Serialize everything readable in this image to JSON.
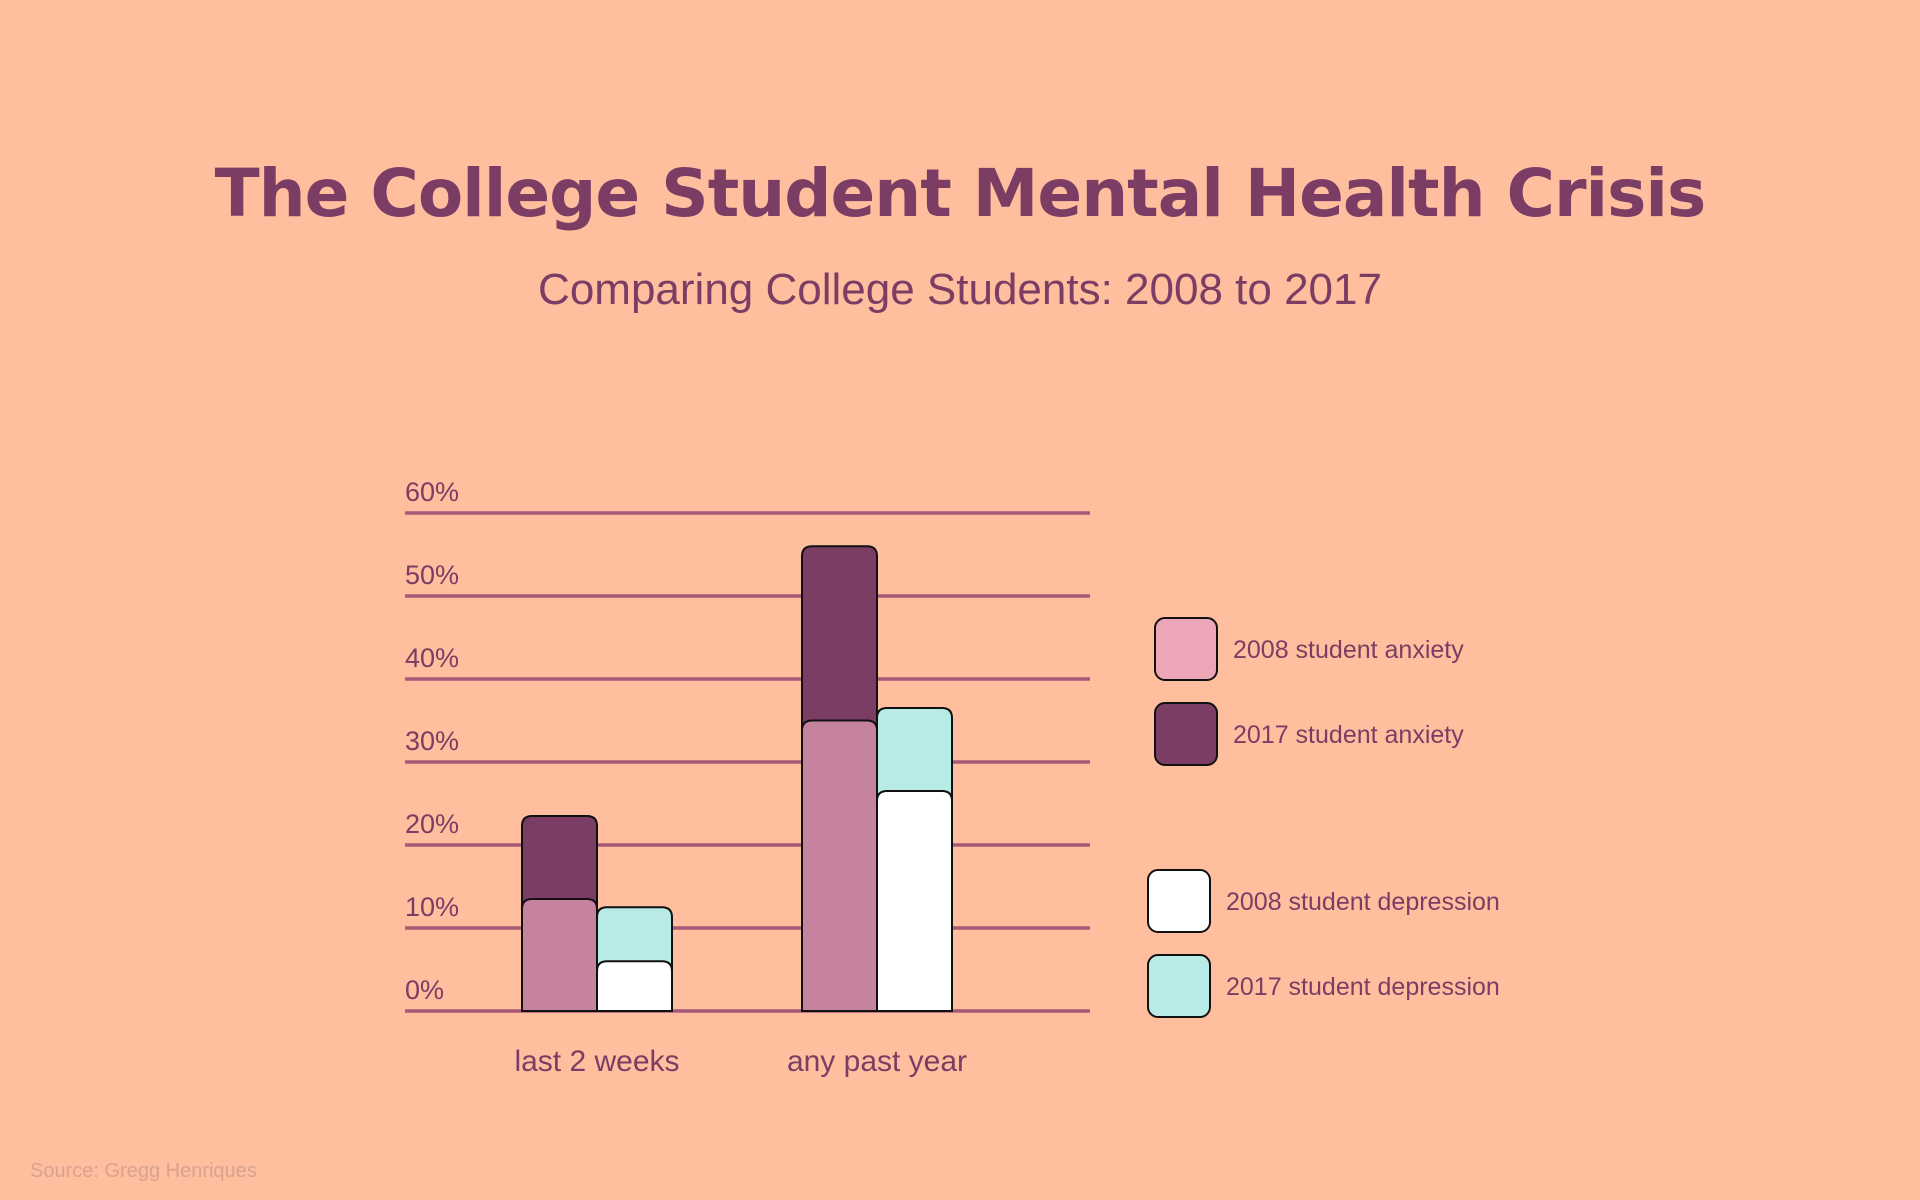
{
  "title": "The College Student Mental Health Crisis",
  "subtitle": "Comparing College Students: 2008 to 2017",
  "source": "Source: Gregg Henriques",
  "colors": {
    "background": "#FFBF9F",
    "text": "#7B3D63",
    "gridline": "#A85878",
    "source_text": "#D9A290",
    "outline": "#111111",
    "anxiety_2008": "#C6839F",
    "anxiety_2017": "#7B3D63",
    "depression_2008": "#FFFFFF",
    "depression_2017": "#B9EBE6",
    "legend_anxiety_2008": "#EBA6B8"
  },
  "chart_data": {
    "type": "bar",
    "title": "The College Student Mental Health Crisis",
    "subtitle": "Comparing College Students: 2008 to 2017",
    "categories": [
      "last 2 weeks",
      "any past year"
    ],
    "ylim": [
      0,
      60
    ],
    "yticks": [
      0,
      10,
      20,
      30,
      40,
      50,
      60
    ],
    "ytick_labels": [
      "0%",
      "10%",
      "20%",
      "30%",
      "40%",
      "50%",
      "60%"
    ],
    "grid": true,
    "legend_position": "right",
    "series": [
      {
        "name": "2008 student anxiety",
        "key": "anxiety_2008",
        "values": [
          13.5,
          35
        ]
      },
      {
        "name": "2017 student anxiety",
        "key": "anxiety_2017",
        "values": [
          23.5,
          56
        ]
      },
      {
        "name": "2008 student depression",
        "key": "depression_2008",
        "values": [
          6,
          26.5
        ]
      },
      {
        "name": "2017 student depression",
        "key": "depression_2017",
        "values": [
          12.5,
          36.5
        ]
      }
    ],
    "bar_groups": [
      {
        "label": "anxiety",
        "back": "anxiety_2017",
        "front": "anxiety_2008"
      },
      {
        "label": "depression",
        "back": "depression_2017",
        "front": "depression_2008"
      }
    ],
    "legend": [
      {
        "name": "2008 student anxiety",
        "key": "legend_anxiety_2008"
      },
      {
        "name": "2017 student anxiety",
        "key": "anxiety_2017"
      },
      {
        "name": "2008 student depression",
        "key": "depression_2008"
      },
      {
        "name": "2017 student depression",
        "key": "depression_2017"
      }
    ]
  }
}
